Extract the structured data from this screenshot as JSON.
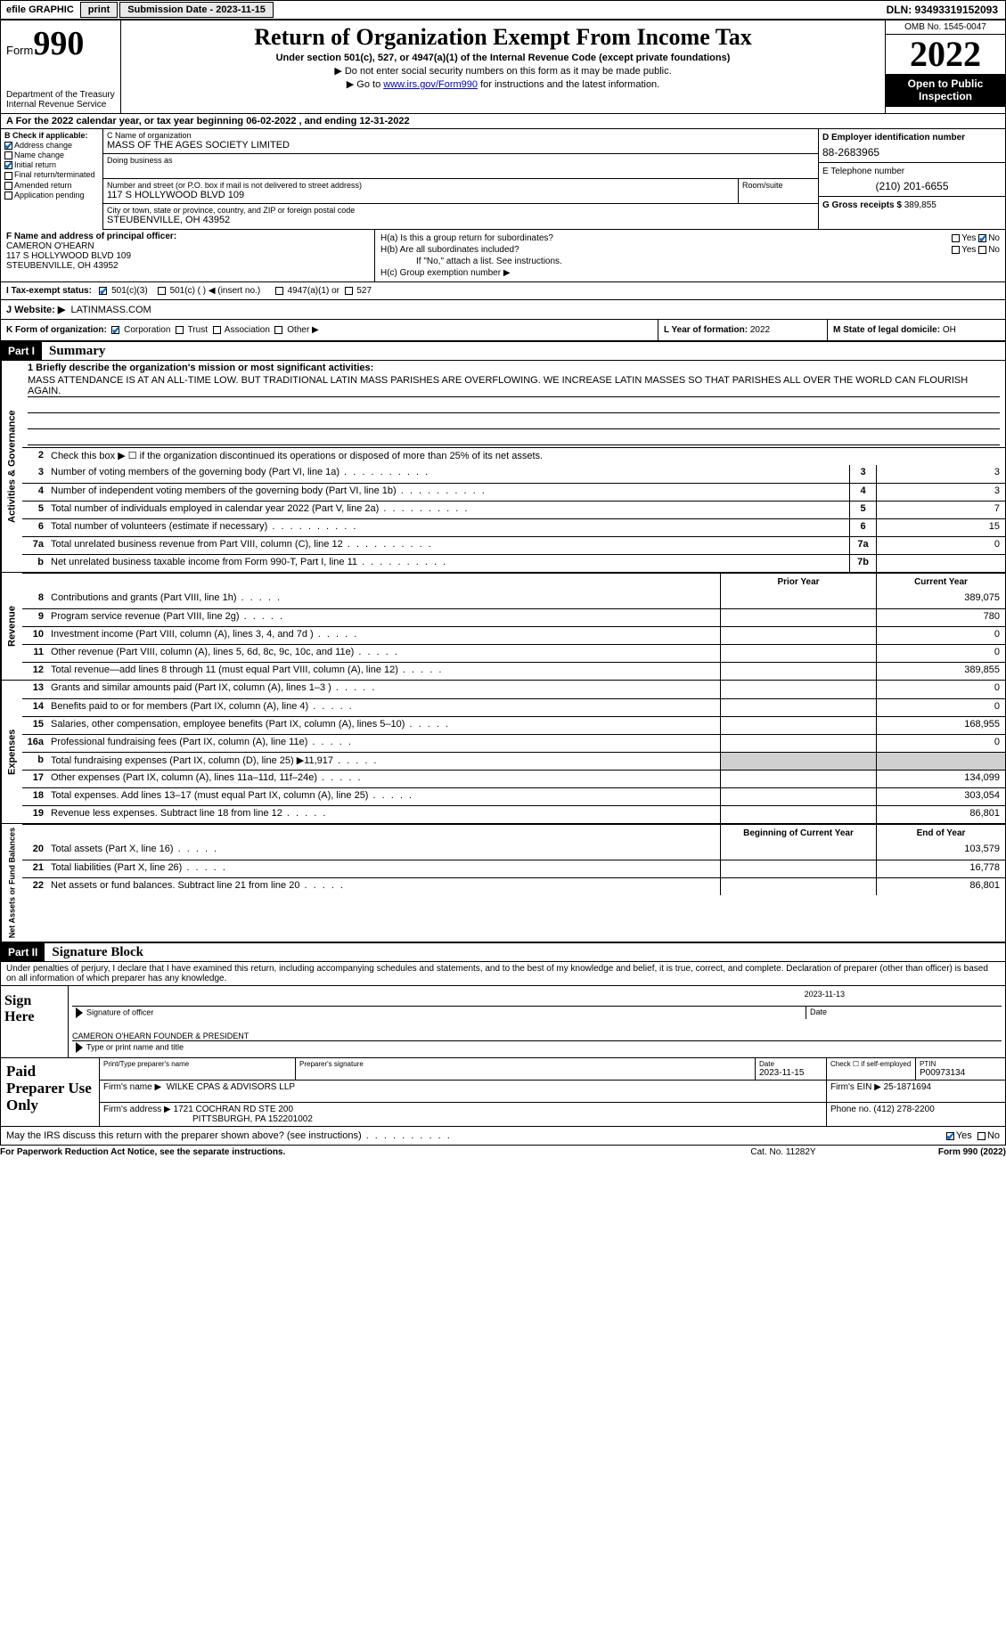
{
  "top": {
    "efile": "efile GRAPHIC",
    "print": "print",
    "sub_label": "Submission Date - 2023-11-15",
    "dln": "DLN: 93493319152093"
  },
  "header": {
    "form_word": "Form",
    "form_num": "990",
    "dept": "Department of the Treasury",
    "irs": "Internal Revenue Service",
    "title": "Return of Organization Exempt From Income Tax",
    "sub1": "Under section 501(c), 527, or 4947(a)(1) of the Internal Revenue Code (except private foundations)",
    "sub2": "▶ Do not enter social security numbers on this form as it may be made public.",
    "sub3_pre": "▶ Go to ",
    "sub3_link": "www.irs.gov/Form990",
    "sub3_post": " for instructions and the latest information.",
    "omb": "OMB No. 1545-0047",
    "year": "2022",
    "inspect1": "Open to Public",
    "inspect2": "Inspection"
  },
  "row_a": "A For the 2022 calendar year, or tax year beginning 06-02-2022    , and ending 12-31-2022",
  "col_b": {
    "title": "B Check if applicable:",
    "items": [
      "Address change",
      "Name change",
      "Initial return",
      "Final return/terminated",
      "Amended return",
      "Application pending"
    ],
    "checked": [
      true,
      false,
      true,
      false,
      false,
      false
    ]
  },
  "box_c": {
    "lbl_name": "C Name of organization",
    "name": "MASS OF THE AGES SOCIETY LIMITED",
    "lbl_dba": "Doing business as",
    "dba": "",
    "lbl_addr": "Number and street (or P.O. box if mail is not delivered to street address)",
    "lbl_room": "Room/suite",
    "addr": "117 S HOLLYWOOD BLVD 109",
    "lbl_city": "City or town, state or province, country, and ZIP or foreign postal code",
    "city": "STEUBENVILLE, OH  43952"
  },
  "box_d": {
    "lbl": "D Employer identification number",
    "val": "88-2683965"
  },
  "box_e": {
    "lbl": "E Telephone number",
    "val": "(210) 201-6655"
  },
  "box_g": {
    "lbl": "G Gross receipts $",
    "val": "389,855"
  },
  "row_f": {
    "lbl": "F Name and address of principal officer:",
    "name": "CAMERON O'HEARN",
    "addr1": "117 S HOLLYWOOD BLVD 109",
    "addr2": "STEUBENVILLE, OH  43952"
  },
  "row_h": {
    "ha": "H(a)  Is this a group return for subordinates?",
    "hb": "H(b)  Are all subordinates included?",
    "hb_note": "If \"No,\" attach a list. See instructions.",
    "hc": "H(c)  Group exemption number ▶",
    "yes": "Yes",
    "no": "No"
  },
  "row_i": {
    "lbl": "I   Tax-exempt status:",
    "o1": "501(c)(3)",
    "o2": "501(c) (  ) ◀ (insert no.)",
    "o3": "4947(a)(1) or",
    "o4": "527"
  },
  "row_j": {
    "lbl": "J   Website: ▶",
    "val": "LATINMASS.COM"
  },
  "row_k": {
    "lbl": "K Form of organization:",
    "o": [
      "Corporation",
      "Trust",
      "Association",
      "Other ▶"
    ]
  },
  "row_l": {
    "lbl": "L Year of formation:",
    "val": "2022"
  },
  "row_m": {
    "lbl": "M State of legal domicile:",
    "val": "OH"
  },
  "part1": {
    "num": "Part I",
    "title": "Summary"
  },
  "summary": {
    "side1": "Activities & Governance",
    "side2": "Revenue",
    "side3": "Expenses",
    "side4": "Net Assets or Fund Balances",
    "line1_lbl": "1   Briefly describe the organization's mission or most significant activities:",
    "line1_val": "MASS ATTENDANCE IS AT AN ALL-TIME LOW. BUT TRADITIONAL LATIN MASS PARISHES ARE OVERFLOWING. WE INCREASE LATIN MASSES SO THAT PARISHES ALL OVER THE WORLD CAN FLOURISH AGAIN.",
    "line2": "Check this box ▶ ☐ if the organization discontinued its operations or disposed of more than 25% of its net assets.",
    "lines_ag": [
      {
        "n": "3",
        "d": "Number of voting members of the governing body (Part VI, line 1a)",
        "b": "3",
        "v": "3"
      },
      {
        "n": "4",
        "d": "Number of independent voting members of the governing body (Part VI, line 1b)",
        "b": "4",
        "v": "3"
      },
      {
        "n": "5",
        "d": "Total number of individuals employed in calendar year 2022 (Part V, line 2a)",
        "b": "5",
        "v": "7"
      },
      {
        "n": "6",
        "d": "Total number of volunteers (estimate if necessary)",
        "b": "6",
        "v": "15"
      },
      {
        "n": "7a",
        "d": "Total unrelated business revenue from Part VIII, column (C), line 12",
        "b": "7a",
        "v": "0"
      },
      {
        "n": "b",
        "d": "Net unrelated business taxable income from Form 990-T, Part I, line 11",
        "b": "7b",
        "v": ""
      }
    ],
    "col_prior": "Prior Year",
    "col_curr": "Current Year",
    "lines_rev": [
      {
        "n": "8",
        "d": "Contributions and grants (Part VIII, line 1h)",
        "p": "",
        "c": "389,075"
      },
      {
        "n": "9",
        "d": "Program service revenue (Part VIII, line 2g)",
        "p": "",
        "c": "780"
      },
      {
        "n": "10",
        "d": "Investment income (Part VIII, column (A), lines 3, 4, and 7d )",
        "p": "",
        "c": "0"
      },
      {
        "n": "11",
        "d": "Other revenue (Part VIII, column (A), lines 5, 6d, 8c, 9c, 10c, and 11e)",
        "p": "",
        "c": "0"
      },
      {
        "n": "12",
        "d": "Total revenue—add lines 8 through 11 (must equal Part VIII, column (A), line 12)",
        "p": "",
        "c": "389,855"
      }
    ],
    "lines_exp": [
      {
        "n": "13",
        "d": "Grants and similar amounts paid (Part IX, column (A), lines 1–3 )",
        "p": "",
        "c": "0"
      },
      {
        "n": "14",
        "d": "Benefits paid to or for members (Part IX, column (A), line 4)",
        "p": "",
        "c": "0"
      },
      {
        "n": "15",
        "d": "Salaries, other compensation, employee benefits (Part IX, column (A), lines 5–10)",
        "p": "",
        "c": "168,955"
      },
      {
        "n": "16a",
        "d": "Professional fundraising fees (Part IX, column (A), line 11e)",
        "p": "",
        "c": "0"
      },
      {
        "n": "b",
        "d": "Total fundraising expenses (Part IX, column (D), line 25) ▶11,917",
        "p": "shaded",
        "c": "shaded"
      },
      {
        "n": "17",
        "d": "Other expenses (Part IX, column (A), lines 11a–11d, 11f–24e)",
        "p": "",
        "c": "134,099"
      },
      {
        "n": "18",
        "d": "Total expenses. Add lines 13–17 (must equal Part IX, column (A), line 25)",
        "p": "",
        "c": "303,054"
      },
      {
        "n": "19",
        "d": "Revenue less expenses. Subtract line 18 from line 12",
        "p": "",
        "c": "86,801"
      }
    ],
    "col_beg": "Beginning of Current Year",
    "col_end": "End of Year",
    "lines_net": [
      {
        "n": "20",
        "d": "Total assets (Part X, line 16)",
        "p": "",
        "c": "103,579"
      },
      {
        "n": "21",
        "d": "Total liabilities (Part X, line 26)",
        "p": "",
        "c": "16,778"
      },
      {
        "n": "22",
        "d": "Net assets or fund balances. Subtract line 21 from line 20",
        "p": "",
        "c": "86,801"
      }
    ]
  },
  "part2": {
    "num": "Part II",
    "title": "Signature Block"
  },
  "sig": {
    "decl": "Under penalties of perjury, I declare that I have examined this return, including accompanying schedules and statements, and to the best of my knowledge and belief, it is true, correct, and complete. Declaration of preparer (other than officer) is based on all information of which preparer has any knowledge.",
    "sign_here": "Sign Here",
    "sig_officer": "Signature of officer",
    "date_lbl": "Date",
    "date_val": "2023-11-13",
    "name_title": "CAMERON O'HEARN  FOUNDER & PRESIDENT",
    "type_name": "Type or print name and title"
  },
  "prep": {
    "title": "Paid Preparer Use Only",
    "h1": "Print/Type preparer's name",
    "h2": "Preparer's signature",
    "h3_lbl": "Date",
    "h3_val": "2023-11-15",
    "h4_lbl": "Check ☐ if self-employed",
    "h5_lbl": "PTIN",
    "h5_val": "P00973134",
    "firm_lbl": "Firm's name    ▶",
    "firm_val": "WILKE CPAS & ADVISORS LLP",
    "ein_lbl": "Firm's EIN ▶",
    "ein_val": "25-1871694",
    "addr_lbl": "Firm's address ▶",
    "addr_val1": "1721 COCHRAN RD STE 200",
    "addr_val2": "PITTSBURGH, PA  152201002",
    "phone_lbl": "Phone no.",
    "phone_val": "(412) 278-2200"
  },
  "may": {
    "q": "May the IRS discuss this return with the preparer shown above? (see instructions)",
    "yes": "Yes",
    "no": "No"
  },
  "footer": {
    "l": "For Paperwork Reduction Act Notice, see the separate instructions.",
    "c": "Cat. No. 11282Y",
    "r": "Form 990 (2022)"
  }
}
